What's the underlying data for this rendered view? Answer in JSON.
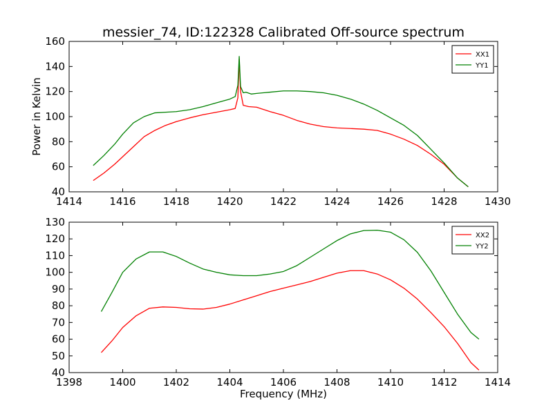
{
  "chart_data": [
    {
      "type": "line",
      "title": "messier_74, ID:122328 Calibrated Off-source spectrum",
      "xlabel": "",
      "ylabel": "Power in Kelvin",
      "xlim": [
        1414,
        1430
      ],
      "ylim": [
        40,
        160
      ],
      "xticks": [
        1414,
        1416,
        1418,
        1420,
        1422,
        1424,
        1426,
        1428,
        1430
      ],
      "yticks": [
        40,
        60,
        80,
        100,
        120,
        140,
        160
      ],
      "grid": false,
      "legend": "top-right",
      "series": [
        {
          "name": "XX1",
          "color": "#ff0000",
          "points": [
            [
              1414.9,
              49
            ],
            [
              1415.3,
              55
            ],
            [
              1415.7,
              62
            ],
            [
              1416,
              68
            ],
            [
              1416.4,
              76
            ],
            [
              1416.8,
              84
            ],
            [
              1417.2,
              89
            ],
            [
              1417.6,
              93
            ],
            [
              1418,
              96
            ],
            [
              1418.5,
              99
            ],
            [
              1419,
              101.5
            ],
            [
              1419.5,
              103.5
            ],
            [
              1420,
              105.5
            ],
            [
              1420.2,
              106.5
            ],
            [
              1420.3,
              115
            ],
            [
              1420.35,
              146
            ],
            [
              1420.4,
              120
            ],
            [
              1420.5,
              109
            ],
            [
              1420.7,
              108
            ],
            [
              1421,
              107.5
            ],
            [
              1421.5,
              104
            ],
            [
              1422,
              101
            ],
            [
              1422.5,
              97
            ],
            [
              1423,
              94
            ],
            [
              1423.5,
              92
            ],
            [
              1424,
              91
            ],
            [
              1424.5,
              90.5
            ],
            [
              1425,
              90
            ],
            [
              1425.5,
              89
            ],
            [
              1426,
              86
            ],
            [
              1426.5,
              82
            ],
            [
              1427,
              77
            ],
            [
              1427.5,
              70
            ],
            [
              1428,
              62
            ],
            [
              1428.5,
              51
            ],
            [
              1428.9,
              44
            ]
          ]
        },
        {
          "name": "YY1",
          "color": "#008000",
          "points": [
            [
              1414.9,
              61
            ],
            [
              1415.3,
              69
            ],
            [
              1415.7,
              78
            ],
            [
              1416,
              86
            ],
            [
              1416.4,
              95
            ],
            [
              1416.8,
              100
            ],
            [
              1417.2,
              103
            ],
            [
              1417.6,
              103.5
            ],
            [
              1418,
              104
            ],
            [
              1418.5,
              105.5
            ],
            [
              1419,
              108
            ],
            [
              1419.5,
              111
            ],
            [
              1420,
              114
            ],
            [
              1420.2,
              116
            ],
            [
              1420.3,
              125
            ],
            [
              1420.35,
              148
            ],
            [
              1420.4,
              124
            ],
            [
              1420.5,
              119
            ],
            [
              1420.6,
              119.5
            ],
            [
              1420.8,
              118
            ],
            [
              1421,
              118.5
            ],
            [
              1421.5,
              119.5
            ],
            [
              1422,
              120.5
            ],
            [
              1422.5,
              120.5
            ],
            [
              1423,
              120
            ],
            [
              1423.5,
              119
            ],
            [
              1424,
              117
            ],
            [
              1424.5,
              114
            ],
            [
              1425,
              110
            ],
            [
              1425.5,
              105
            ],
            [
              1426,
              99
            ],
            [
              1426.5,
              93
            ],
            [
              1427,
              85
            ],
            [
              1427.5,
              74
            ],
            [
              1428,
              63
            ],
            [
              1428.5,
              51
            ],
            [
              1428.9,
              44
            ]
          ]
        }
      ]
    },
    {
      "type": "line",
      "title": "",
      "xlabel": "Frequency (MHz)",
      "ylabel": "",
      "xlim": [
        1398,
        1414
      ],
      "ylim": [
        40,
        130
      ],
      "xticks": [
        1398,
        1400,
        1402,
        1404,
        1406,
        1408,
        1410,
        1412,
        1414
      ],
      "yticks": [
        40,
        50,
        60,
        70,
        80,
        90,
        100,
        110,
        120,
        130
      ],
      "grid": false,
      "legend": "top-right",
      "series": [
        {
          "name": "XX2",
          "color": "#ff0000",
          "points": [
            [
              1399.2,
              52
            ],
            [
              1399.6,
              59
            ],
            [
              1400,
              67
            ],
            [
              1400.5,
              74
            ],
            [
              1401,
              78.5
            ],
            [
              1401.5,
              79.3
            ],
            [
              1402,
              79
            ],
            [
              1402.5,
              78.2
            ],
            [
              1403,
              78
            ],
            [
              1403.5,
              79
            ],
            [
              1404,
              81
            ],
            [
              1404.5,
              83.5
            ],
            [
              1405,
              86
            ],
            [
              1405.5,
              88.5
            ],
            [
              1406,
              90.5
            ],
            [
              1406.5,
              92.5
            ],
            [
              1407,
              94.5
            ],
            [
              1407.5,
              97
            ],
            [
              1408,
              99.5
            ],
            [
              1408.5,
              101
            ],
            [
              1409,
              101
            ],
            [
              1409.5,
              99
            ],
            [
              1410,
              95.5
            ],
            [
              1410.5,
              90.5
            ],
            [
              1411,
              84
            ],
            [
              1411.5,
              76
            ],
            [
              1412,
              67.5
            ],
            [
              1412.5,
              57.5
            ],
            [
              1413,
              46
            ],
            [
              1413.3,
              41.5
            ]
          ]
        },
        {
          "name": "YY2",
          "color": "#008000",
          "points": [
            [
              1399.2,
              76.5
            ],
            [
              1399.6,
              88
            ],
            [
              1400,
              100
            ],
            [
              1400.5,
              108
            ],
            [
              1401,
              112.2
            ],
            [
              1401.5,
              112.2
            ],
            [
              1402,
              109.5
            ],
            [
              1402.5,
              105.5
            ],
            [
              1403,
              102
            ],
            [
              1403.5,
              100
            ],
            [
              1404,
              98.5
            ],
            [
              1404.5,
              98
            ],
            [
              1405,
              98
            ],
            [
              1405.5,
              99
            ],
            [
              1406,
              100.5
            ],
            [
              1406.5,
              104
            ],
            [
              1407,
              109
            ],
            [
              1407.5,
              114
            ],
            [
              1408,
              119
            ],
            [
              1408.5,
              123
            ],
            [
              1409,
              125
            ],
            [
              1409.5,
              125.2
            ],
            [
              1410,
              124
            ],
            [
              1410.5,
              119.5
            ],
            [
              1411,
              112
            ],
            [
              1411.5,
              101
            ],
            [
              1412,
              88
            ],
            [
              1412.5,
              75
            ],
            [
              1413,
              64
            ],
            [
              1413.3,
              60
            ]
          ]
        }
      ]
    }
  ]
}
